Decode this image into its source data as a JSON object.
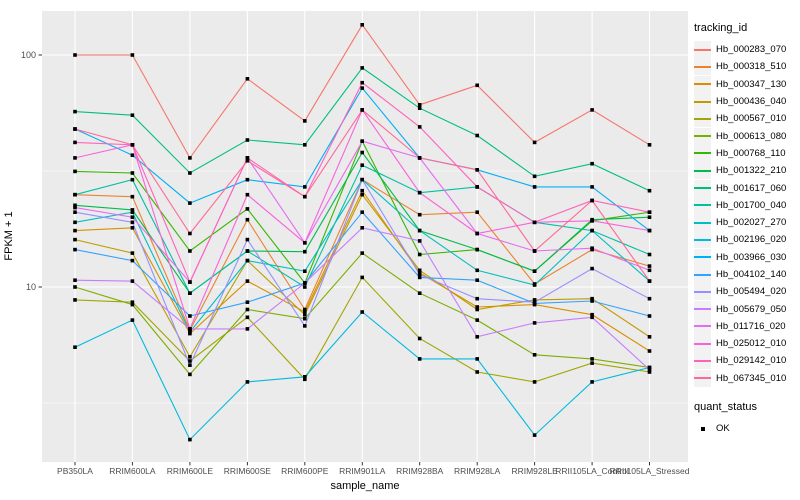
{
  "figure": {
    "background": "#FFFFFF",
    "panel_background": "#EBEBEB",
    "grid_color": "#FFFFFF",
    "tick_color": "#333333",
    "tick_label_color": "#4D4D4D",
    "marker_color": "#000000"
  },
  "chart_data": {
    "type": "line",
    "title": "",
    "xlabel": "sample_name",
    "ylabel": "FPKM + 1",
    "y_scale": "log10",
    "ylim": [
      1.8,
      155
    ],
    "y_ticks": [
      100,
      10
    ],
    "y_tick_labels": [
      "100",
      "10"
    ],
    "y_minor_ticks": [
      31.62,
      3.162
    ],
    "grid": true,
    "legend_position": "right",
    "marker": "filled-black-square",
    "categories": [
      "PB350LA",
      "RRIM600LA",
      "RRIM600LE",
      "RRIM600SE",
      "RRIM600PE",
      "RRIM901LA",
      "RRIM928BA",
      "RRIM928LA",
      "RRIM928LE",
      "RRII105LA_Control",
      "RRII105LA_Stressed"
    ],
    "series": [
      {
        "name": "Hb_000283_070",
        "color": "#F8766D",
        "values": [
          100,
          100,
          36,
          79,
          52,
          135,
          61,
          74,
          42,
          58,
          41
        ]
      },
      {
        "name": "Hb_000318_510",
        "color": "#EA8331",
        "values": [
          25,
          24.5,
          6.5,
          19.5,
          8.0,
          29,
          20.5,
          21,
          10.3,
          14.5,
          12.3
        ]
      },
      {
        "name": "Hb_000347_130",
        "color": "#D89000",
        "values": [
          17.5,
          18,
          6.3,
          10.6,
          7.8,
          26,
          11.5,
          8.2,
          8.4,
          7.6,
          5.3
        ]
      },
      {
        "name": "Hb_000436_040",
        "color": "#C09B00",
        "values": [
          16,
          14,
          5.0,
          13,
          7.6,
          25,
          11.8,
          8.0,
          8.8,
          8.9,
          6.1
        ]
      },
      {
        "name": "Hb_000567_010",
        "color": "#A3A500",
        "values": [
          8.8,
          8.6,
          4.8,
          7.4,
          4.0,
          11,
          6.0,
          4.3,
          3.9,
          4.7,
          4.3
        ]
      },
      {
        "name": "Hb_000613_080",
        "color": "#7CAE00",
        "values": [
          10,
          8.4,
          4.2,
          8.0,
          7.3,
          14,
          9.4,
          7.2,
          5.1,
          4.9,
          4.5
        ]
      },
      {
        "name": "Hb_000768_110",
        "color": "#39B600",
        "values": [
          31.5,
          31,
          14.3,
          21.7,
          10.4,
          42.5,
          13.8,
          14.5,
          11.7,
          19.3,
          21
        ]
      },
      {
        "name": "Hb_001322_210",
        "color": "#00BB4E",
        "values": [
          22.5,
          21.5,
          9.4,
          14.3,
          14.2,
          38,
          17.5,
          14.5,
          11.7,
          19.5,
          20
        ]
      },
      {
        "name": "Hb_001617_060",
        "color": "#00BF7D",
        "values": [
          57,
          55,
          31,
          43,
          41,
          88,
          59,
          45,
          30,
          34,
          26
        ]
      },
      {
        "name": "Hb_001700_040",
        "color": "#00C1A3",
        "values": [
          25,
          29,
          9.4,
          14.3,
          10,
          33.5,
          25.5,
          27,
          19,
          17.5,
          13.8
        ]
      },
      {
        "name": "Hb_002027_270",
        "color": "#00BFC4",
        "values": [
          19,
          21,
          6.4,
          13,
          11.7,
          29,
          17.5,
          11.8,
          10.2,
          17.5,
          10.6
        ]
      },
      {
        "name": "Hb_002196_020",
        "color": "#00BAE0",
        "values": [
          5.5,
          7.2,
          2.2,
          3.9,
          4.1,
          7.8,
          4.9,
          4.9,
          2.3,
          3.9,
          4.5
        ]
      },
      {
        "name": "Hb_003966_030",
        "color": "#00B0F6",
        "values": [
          48,
          37,
          23,
          29,
          27,
          72,
          36,
          32,
          27,
          27,
          17.5
        ]
      },
      {
        "name": "Hb_004102_140",
        "color": "#35A2FF",
        "values": [
          14.5,
          13,
          7.5,
          8.6,
          10.4,
          21,
          11,
          10.7,
          8.5,
          8.7,
          7.5
        ]
      },
      {
        "name": "Hb_005494_020",
        "color": "#9590FF",
        "values": [
          21,
          19,
          4.6,
          16,
          6.8,
          29,
          11.3,
          8.9,
          8.6,
          12,
          8.9
        ]
      },
      {
        "name": "Hb_005679_050",
        "color": "#C77CFF",
        "values": [
          10.7,
          10.6,
          6.6,
          6.6,
          10.4,
          18,
          15.8,
          6.1,
          7.0,
          7.4,
          4.4
        ]
      },
      {
        "name": "Hb_011716_020",
        "color": "#E76BF3",
        "values": [
          22,
          20,
          10.5,
          36,
          15.5,
          42.5,
          36,
          17,
          14.3,
          14.7,
          11.8
        ]
      },
      {
        "name": "Hb_025012_010",
        "color": "#FA62DB",
        "values": [
          36,
          41,
          6.6,
          25,
          15.5,
          58,
          25.5,
          17,
          19,
          19.3,
          17.5
        ]
      },
      {
        "name": "Hb_029142_010",
        "color": "#FF62BC",
        "values": [
          42,
          41,
          10.5,
          36,
          24.5,
          76,
          49,
          27,
          19,
          23.6,
          21
        ]
      },
      {
        "name": "Hb_067345_010",
        "color": "#FF6A98",
        "values": [
          48,
          41,
          17,
          35,
          24.5,
          58,
          36,
          32,
          14.3,
          23.6,
          10.6
        ]
      }
    ]
  },
  "legend": {
    "tracking_title": "tracking_id",
    "quant_title": "quant_status",
    "quant_items": [
      {
        "label": "OK",
        "marker": "black-square"
      }
    ]
  }
}
